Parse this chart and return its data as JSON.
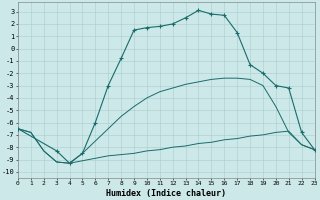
{
  "xlabel": "Humidex (Indice chaleur)",
  "bg_color": "#cce8e8",
  "grid_color": "#aacccc",
  "line_color": "#1a6b6b",
  "xlim": [
    0,
    23
  ],
  "ylim": [
    -10.5,
    3.8
  ],
  "yticks": [
    3,
    2,
    1,
    0,
    -1,
    -2,
    -3,
    -4,
    -5,
    -6,
    -7,
    -8,
    -9,
    -10
  ],
  "xticks": [
    0,
    1,
    2,
    3,
    4,
    5,
    6,
    7,
    8,
    9,
    10,
    11,
    12,
    13,
    14,
    15,
    16,
    17,
    18,
    19,
    20,
    21,
    22,
    23
  ],
  "line_flat_x": [
    0,
    1,
    2,
    3,
    4,
    5,
    6,
    7,
    8,
    9,
    10,
    11,
    12,
    13,
    14,
    15,
    16,
    17,
    18,
    19,
    20,
    21,
    22,
    23
  ],
  "line_flat_y": [
    -6.5,
    -6.8,
    -8.3,
    -9.2,
    -9.3,
    -9.1,
    -8.9,
    -8.7,
    -8.6,
    -8.5,
    -8.3,
    -8.2,
    -8.0,
    -7.9,
    -7.7,
    -7.6,
    -7.4,
    -7.3,
    -7.1,
    -7.0,
    -6.8,
    -6.7,
    -7.8,
    -8.2
  ],
  "line_mid_x": [
    0,
    1,
    2,
    3,
    4,
    5,
    6,
    7,
    8,
    9,
    10,
    11,
    12,
    13,
    14,
    15,
    16,
    17,
    18,
    19,
    20,
    21,
    22,
    23
  ],
  "line_mid_y": [
    -6.5,
    -6.8,
    -8.3,
    -9.2,
    -9.3,
    -8.5,
    -7.5,
    -6.5,
    -5.5,
    -4.7,
    -4.0,
    -3.5,
    -3.2,
    -2.9,
    -2.7,
    -2.5,
    -2.4,
    -2.4,
    -2.5,
    -3.0,
    -4.7,
    -6.8,
    -7.8,
    -8.2
  ],
  "line_top_x": [
    0,
    3,
    4,
    5,
    6,
    7,
    8,
    9,
    10,
    11,
    12,
    13,
    14,
    15,
    16,
    17,
    18,
    19,
    20,
    21,
    22,
    23
  ],
  "line_top_y": [
    -6.5,
    -8.3,
    -9.3,
    -8.5,
    -6.0,
    -3.0,
    -0.8,
    1.5,
    1.7,
    1.8,
    2.0,
    2.5,
    3.1,
    2.8,
    2.7,
    1.3,
    -1.3,
    -2.0,
    -3.0,
    -3.2,
    -6.8,
    -8.2
  ]
}
